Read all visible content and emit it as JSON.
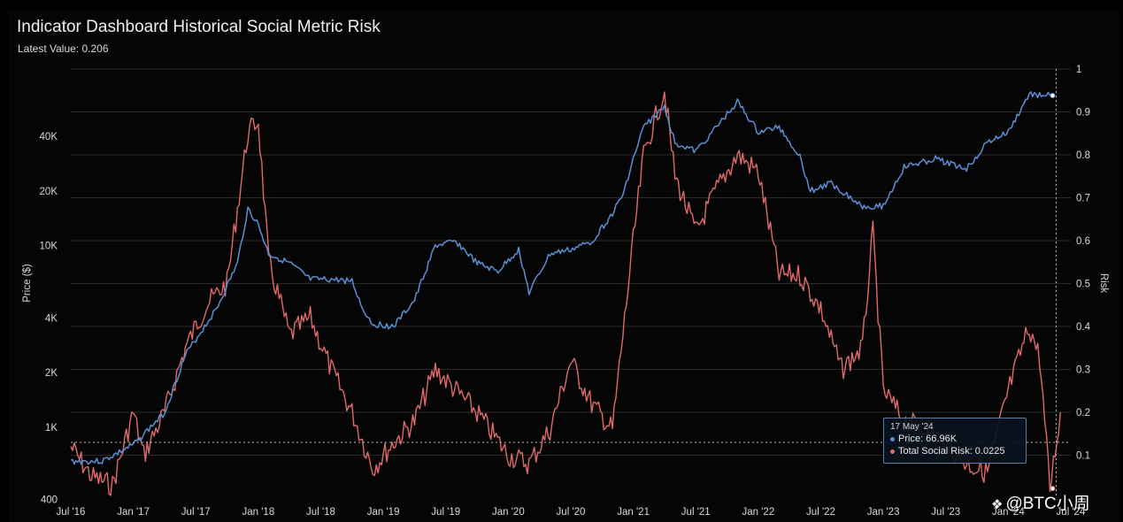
{
  "header": {
    "title": "Indicator Dashboard Historical Social Metric Risk",
    "latest_value": "Latest Value: 0.206"
  },
  "colors": {
    "price": "#5b8fd4",
    "risk": "#e06a6a",
    "grid": "#2a2a2a",
    "background": "#000000"
  },
  "chart_data": {
    "type": "line",
    "title": "Indicator Dashboard Historical Social Metric Risk",
    "x_ticks": [
      "Jul '16",
      "Jan '17",
      "Jul '17",
      "Jan '18",
      "Jul '18",
      "Jan '19",
      "Jul '19",
      "Jan '20",
      "Jul '20",
      "Jan '21",
      "Jul '21",
      "Jan '22",
      "Jul '22",
      "Jan '23",
      "Jul '23",
      "Jan '24",
      "Jul '24"
    ],
    "y_left": {
      "label": "Price ($)",
      "scale": "log",
      "ticks": [
        "400",
        "1K",
        "2K",
        "4K",
        "10K",
        "20K",
        "40K"
      ],
      "tick_values": [
        400,
        1000,
        2000,
        4000,
        10000,
        20000,
        40000
      ]
    },
    "y_right": {
      "label": "Risk",
      "scale": "linear",
      "ylim": [
        0,
        1
      ],
      "ticks": [
        "0.1",
        "0.2",
        "0.3",
        "0.4",
        "0.5",
        "0.6",
        "0.7",
        "0.8",
        "0.9",
        "1"
      ]
    },
    "grid": true,
    "series": [
      {
        "name": "Price",
        "axis": "left",
        "x": [
          "2016-07",
          "2016-10",
          "2017-01",
          "2017-04",
          "2017-06",
          "2017-09",
          "2017-11",
          "2017-12",
          "2018-01",
          "2018-02",
          "2018-04",
          "2018-06",
          "2018-08",
          "2018-10",
          "2018-11",
          "2018-12",
          "2019-02",
          "2019-04",
          "2019-06",
          "2019-08",
          "2019-10",
          "2019-12",
          "2020-02",
          "2020-03",
          "2020-05",
          "2020-07",
          "2020-09",
          "2020-11",
          "2020-12",
          "2021-01",
          "2021-02",
          "2021-04",
          "2021-05",
          "2021-07",
          "2021-09",
          "2021-11",
          "2022-01",
          "2022-03",
          "2022-05",
          "2022-06",
          "2022-08",
          "2022-11",
          "2023-01",
          "2023-03",
          "2023-06",
          "2023-09",
          "2023-11",
          "2024-01",
          "2024-03",
          "2024-05"
        ],
        "values": [
          650,
          650,
          800,
          1200,
          2500,
          4500,
          8000,
          16000,
          13000,
          9000,
          8000,
          6500,
          6500,
          6400,
          4500,
          3700,
          3600,
          5000,
          10000,
          10500,
          8000,
          7200,
          9500,
          5500,
          9000,
          9500,
          10500,
          15000,
          19000,
          30000,
          45000,
          58000,
          37000,
          33000,
          45000,
          62000,
          42000,
          45000,
          31000,
          20000,
          22000,
          16500,
          16500,
          27000,
          30000,
          26500,
          37000,
          42000,
          68000,
          66960
        ]
      },
      {
        "name": "Total Social Risk",
        "axis": "right",
        "x": [
          "2016-07",
          "2016-09",
          "2016-11",
          "2017-01",
          "2017-02",
          "2017-04",
          "2017-06",
          "2017-08",
          "2017-10",
          "2017-12",
          "2018-01",
          "2018-02",
          "2018-04",
          "2018-06",
          "2018-08",
          "2018-10",
          "2018-12",
          "2019-02",
          "2019-04",
          "2019-06",
          "2019-08",
          "2019-10",
          "2020-01",
          "2020-03",
          "2020-05",
          "2020-07",
          "2020-09",
          "2020-11",
          "2021-01",
          "2021-02",
          "2021-04",
          "2021-05",
          "2021-07",
          "2021-09",
          "2021-11",
          "2022-01",
          "2022-03",
          "2022-05",
          "2022-07",
          "2022-09",
          "2022-11",
          "2022-12",
          "2023-01",
          "2023-03",
          "2023-06",
          "2023-09",
          "2023-11",
          "2024-01",
          "2024-03",
          "2024-04",
          "2024-05",
          "2024-06"
        ],
        "values": [
          0.12,
          0.05,
          0.03,
          0.2,
          0.1,
          0.2,
          0.35,
          0.45,
          0.5,
          0.85,
          0.88,
          0.55,
          0.38,
          0.42,
          0.3,
          0.2,
          0.07,
          0.13,
          0.18,
          0.3,
          0.25,
          0.2,
          0.1,
          0.08,
          0.16,
          0.32,
          0.22,
          0.16,
          0.6,
          0.8,
          0.95,
          0.75,
          0.62,
          0.72,
          0.8,
          0.76,
          0.52,
          0.52,
          0.44,
          0.3,
          0.35,
          0.62,
          0.25,
          0.18,
          0.15,
          0.08,
          0.06,
          0.25,
          0.4,
          0.33,
          0.0225,
          0.2
        ]
      }
    ],
    "tooltip": {
      "date": "17 May '24",
      "price_label": "Price: 66.96K",
      "risk_label": "Total Social Risk: 0.0225"
    }
  },
  "watermark": {
    "text": "@BTC小周",
    "icon": "binance-diamond-icon"
  }
}
